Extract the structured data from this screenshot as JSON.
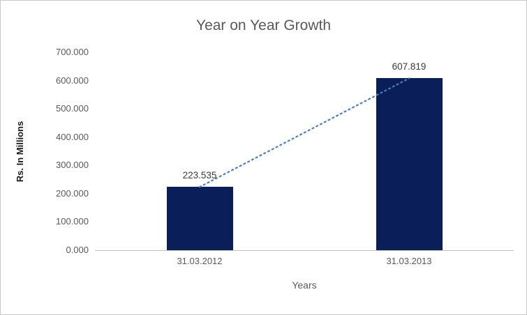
{
  "chart_data": {
    "type": "bar",
    "title": "Year on Year Growth",
    "xlabel": "Years",
    "ylabel": "Rs. In Millions",
    "categories": [
      "31.03.2012",
      "31.03.2013"
    ],
    "values": [
      223.535,
      607.819
    ],
    "value_labels": [
      "223.535",
      "607.819"
    ],
    "ylim": [
      0,
      700
    ],
    "ytick_step": 100,
    "ytick_labels": [
      "0.000",
      "100.000",
      "200.000",
      "300.000",
      "400.000",
      "500.000",
      "600.000",
      "700.000"
    ],
    "grid": false,
    "legend": false,
    "bar_color": "#0a1e5a",
    "axis_line_color": "#bfbfbf",
    "text_color": "#595959",
    "trendline": {
      "style": "dotted",
      "color": "#4a7ebb"
    }
  }
}
